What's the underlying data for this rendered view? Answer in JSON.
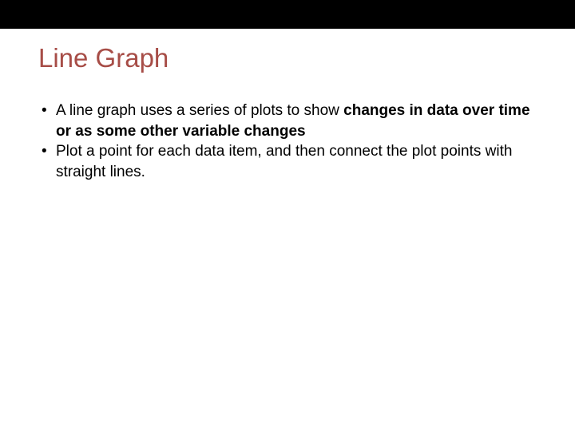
{
  "slide": {
    "title": "Line Graph",
    "title_color": "#a74d47",
    "title_fontsize": 33,
    "body_fontsize": 19,
    "background_color": "#ffffff",
    "top_bar_color": "#000000",
    "top_bar_height": 36,
    "text_color": "#000000",
    "bullets": [
      {
        "prefix": "A line graph uses a series of plots to show ",
        "bold": "changes in data over time or as some other variable changes",
        "suffix": ""
      },
      {
        "prefix": "Plot a point for each data item, and then connect the plot points with straight lines.",
        "bold": "",
        "suffix": ""
      }
    ],
    "bullet_marker": "•"
  }
}
